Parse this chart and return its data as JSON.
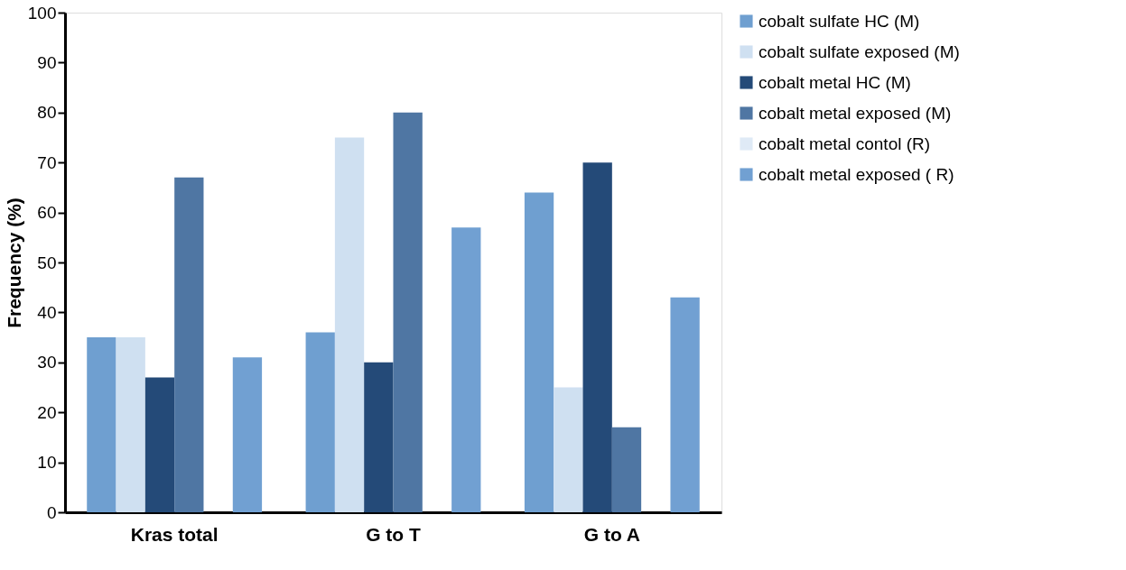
{
  "chart_data": {
    "type": "bar",
    "ylabel": "Frequency (%)",
    "categories": [
      "Kras total",
      "G to T",
      "G to A"
    ],
    "series": [
      {
        "name": "cobalt sulfate HC (M)",
        "color": "#6f9fd0",
        "values": [
          35,
          36,
          64
        ]
      },
      {
        "name": "cobalt sulfate exposed (M)",
        "color": "#cfe0f1",
        "values": [
          35,
          75,
          25
        ]
      },
      {
        "name": "cobalt metal HC (M)",
        "color": "#244a78",
        "values": [
          27,
          30,
          70
        ]
      },
      {
        "name": "cobalt metal exposed (M)",
        "color": "#4f76a3",
        "values": [
          67,
          80,
          17
        ]
      },
      {
        "name": "cobalt metal contol (R)",
        "color": "#dfeaf6",
        "values": [
          null,
          null,
          null
        ]
      },
      {
        "name": "cobalt metal exposed ( R)",
        "color": "#71a0d2",
        "values": [
          31,
          57,
          43
        ]
      }
    ],
    "ylim": [
      0,
      100
    ],
    "yticks": [
      0,
      10,
      20,
      30,
      40,
      50,
      60,
      70,
      80,
      90,
      100
    ],
    "grid": false,
    "legend": "right"
  }
}
